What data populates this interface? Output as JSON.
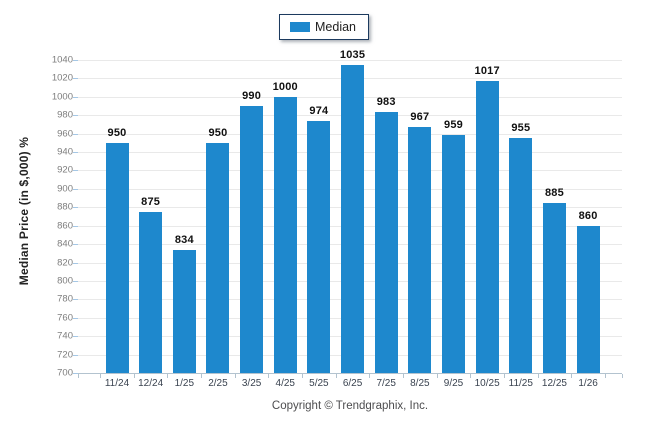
{
  "legend": {
    "label": "Median"
  },
  "footer": {
    "copyright": "Copyright © Trendgraphix, Inc."
  },
  "colors": {
    "bar": "#1e88cd",
    "legend_border": "#1c3a5e",
    "gridline": "#e9e9e9"
  },
  "chart_data": {
    "type": "bar",
    "title": "",
    "xlabel": "",
    "ylabel": "Median Price (in $,000) %",
    "categories": [
      "11/24",
      "12/24",
      "1/25",
      "2/25",
      "3/25",
      "4/25",
      "5/25",
      "6/25",
      "7/25",
      "8/25",
      "9/25",
      "10/25",
      "11/25",
      "12/25",
      "1/26"
    ],
    "series": [
      {
        "name": "Median",
        "values": [
          950,
          875,
          834,
          950,
          990,
          1000,
          974,
          1035,
          983,
          967,
          959,
          1017,
          955,
          885,
          860
        ]
      }
    ],
    "ylim": [
      700,
      1040
    ],
    "ytick_step": 20,
    "grid": true,
    "data_labels": true,
    "legend_position": "top-center",
    "bar_color": "#1e88cd"
  }
}
